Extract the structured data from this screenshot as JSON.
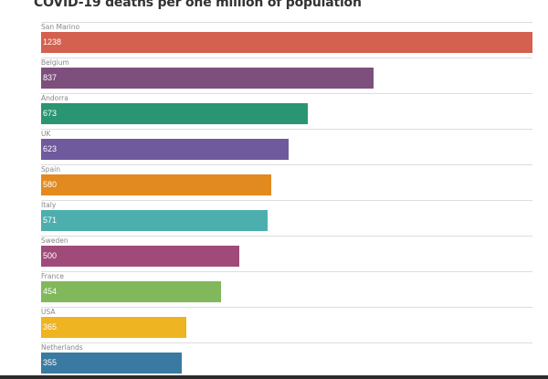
{
  "chart_data": {
    "type": "bar",
    "orientation": "horizontal",
    "title": "COVID-19 deaths per one million of population",
    "xlabel": "",
    "ylabel": "",
    "xlim": [
      0,
      1238
    ],
    "grid": false,
    "categories": [
      "San Marino",
      "Belgium",
      "Andorra",
      "UK",
      "Spain",
      "Italy",
      "Sweden",
      "France",
      "USA",
      "Netherlands"
    ],
    "values": [
      1238,
      837,
      673,
      623,
      580,
      571,
      500,
      454,
      365,
      355
    ],
    "value_labels": [
      "1238",
      "837",
      "673",
      "623",
      "580",
      "571",
      "500",
      "454",
      "365",
      "355"
    ],
    "colors": [
      "#d4604f",
      "#7d4f7c",
      "#2a9573",
      "#6e5a9c",
      "#e2891f",
      "#4daeae",
      "#a04a7a",
      "#82b85c",
      "#efb421",
      "#3a7aa2"
    ]
  }
}
